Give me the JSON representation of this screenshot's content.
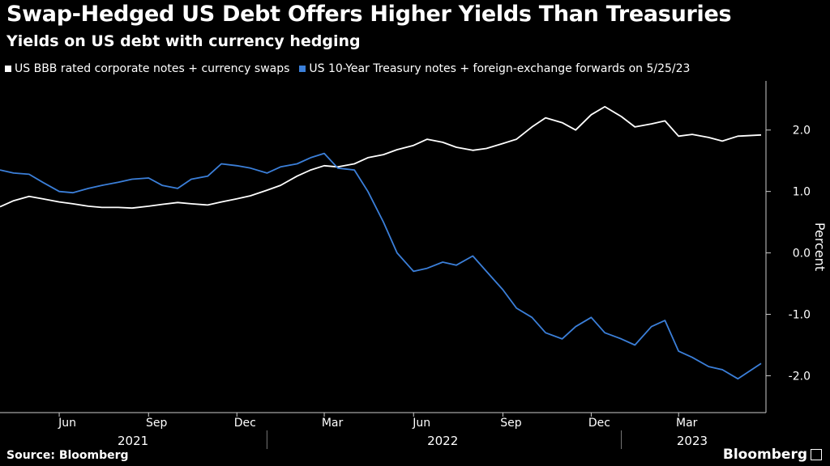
{
  "header": {
    "title": "Swap-Hedged US Debt Offers Higher Yields Than Treasuries",
    "subtitle": "Yields on US debt with currency hedging"
  },
  "footer": {
    "source": "Source: Bloomberg",
    "brand": "Bloomberg"
  },
  "colors": {
    "series1": "#ffffff",
    "series2": "#3b7fd9",
    "axis": "#cccccc"
  },
  "chart_data": {
    "type": "line",
    "ylabel": "Percent",
    "ylim": [
      -2.6,
      2.8
    ],
    "yticks": [
      2.0,
      1.0,
      0.0,
      -1.0,
      -2.0
    ],
    "ytick_labels": [
      "2.0",
      "1.0",
      "0.0",
      "-1.0",
      "-2.0"
    ],
    "month_labels": [
      "Jun",
      "Sep",
      "Dec",
      "Mar",
      "Jun",
      "Sep",
      "Dec",
      "Mar"
    ],
    "year_labels": [
      "2021",
      "2022",
      "2023"
    ],
    "grid": false,
    "legend_position": "top-left",
    "x": [
      "2021-04-01",
      "2021-04-15",
      "2021-05-01",
      "2021-05-15",
      "2021-06-01",
      "2021-06-15",
      "2021-07-01",
      "2021-07-15",
      "2021-08-01",
      "2021-08-15",
      "2021-09-01",
      "2021-09-15",
      "2021-10-01",
      "2021-10-15",
      "2021-11-01",
      "2021-11-15",
      "2021-12-01",
      "2021-12-15",
      "2022-01-01",
      "2022-01-15",
      "2022-02-01",
      "2022-02-15",
      "2022-03-01",
      "2022-03-15",
      "2022-04-01",
      "2022-04-15",
      "2022-05-01",
      "2022-05-15",
      "2022-06-01",
      "2022-06-15",
      "2022-07-01",
      "2022-07-15",
      "2022-08-01",
      "2022-08-15",
      "2022-09-01",
      "2022-09-15",
      "2022-10-01",
      "2022-10-15",
      "2022-11-01",
      "2022-11-15",
      "2022-12-01",
      "2022-12-15",
      "2023-01-01",
      "2023-01-15",
      "2023-02-01",
      "2023-02-15",
      "2023-03-01",
      "2023-03-15",
      "2023-04-01",
      "2023-04-15",
      "2023-05-01",
      "2023-05-25"
    ],
    "series": [
      {
        "name": "US BBB rated corporate notes + currency swaps",
        "values": [
          0.75,
          0.85,
          0.92,
          0.88,
          0.83,
          0.8,
          0.76,
          0.74,
          0.74,
          0.73,
          0.76,
          0.79,
          0.82,
          0.8,
          0.78,
          0.83,
          0.88,
          0.93,
          1.02,
          1.1,
          1.25,
          1.35,
          1.42,
          1.4,
          1.45,
          1.55,
          1.6,
          1.68,
          1.75,
          1.85,
          1.8,
          1.72,
          1.67,
          1.7,
          1.78,
          1.85,
          2.05,
          2.2,
          2.12,
          2.0,
          2.25,
          2.38,
          2.22,
          2.05,
          2.1,
          2.15,
          1.9,
          1.93,
          1.88,
          1.82,
          1.9,
          1.92
        ]
      },
      {
        "name": "US 10-Year Treasury notes + foreign-exchange forwards on 5/25/23",
        "values": [
          1.35,
          1.3,
          1.28,
          1.15,
          1.0,
          0.98,
          1.05,
          1.1,
          1.15,
          1.2,
          1.22,
          1.1,
          1.05,
          1.2,
          1.25,
          1.45,
          1.42,
          1.38,
          1.3,
          1.4,
          1.45,
          1.55,
          1.62,
          1.38,
          1.35,
          1.0,
          0.5,
          0.0,
          -0.3,
          -0.25,
          -0.15,
          -0.2,
          -0.05,
          -0.3,
          -0.6,
          -0.9,
          -1.05,
          -1.3,
          -1.4,
          -1.2,
          -1.05,
          -1.3,
          -1.4,
          -1.5,
          -1.2,
          -1.1,
          -1.6,
          -1.7,
          -1.85,
          -1.9,
          -2.05,
          -1.8
        ]
      }
    ]
  }
}
